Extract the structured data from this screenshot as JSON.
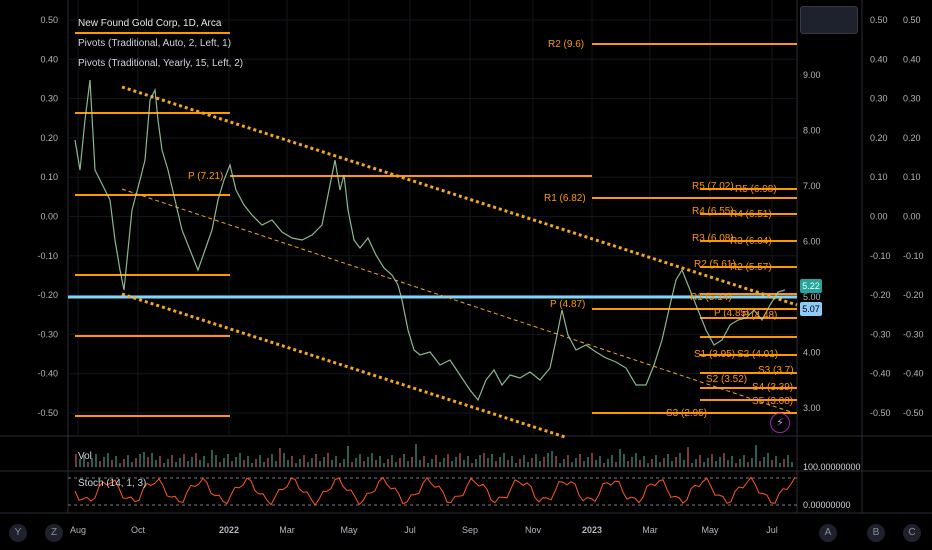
{
  "legend": {
    "title": "New Found Gold Corp, 1D, Arca",
    "ind1": "Pivots (Traditional, Auto, 2, Left, 1)",
    "ind2": "Pivots (Traditional, Yearly, 15, Left, 2)"
  },
  "sub": {
    "vol": "Vol",
    "stoch": "Stoch (14, 1, 3)"
  },
  "left_axis": [
    "0.50",
    "0.40",
    "0.30",
    "0.20",
    "0.10",
    "0.00",
    "-0.10",
    "-0.20",
    "-0.30",
    "-0.40",
    "-0.50"
  ],
  "right_axis": [
    "0.50",
    "0.40",
    "0.30",
    "0.20",
    "0.10",
    "0.00",
    "-0.10",
    "-0.20",
    "-0.30",
    "-0.40",
    "-0.50"
  ],
  "price_axis": [
    "9.00",
    "8.00",
    "7.00",
    "6.00",
    "5.00",
    "4.00",
    "3.00"
  ],
  "time_axis": [
    "Aug",
    "Oct",
    "2022",
    "Mar",
    "May",
    "Jul",
    "Sep",
    "Nov",
    "2023",
    "Mar",
    "May",
    "Jul"
  ],
  "badges": {
    "last": "5.22",
    "prev": "5.07"
  },
  "sub_axis": {
    "top": "100.00000000",
    "bottom": "0.00000000"
  },
  "pivots_left": {
    "p": "P (7.21)"
  },
  "pivots_mid": {
    "r2": "R2 (9.6)",
    "r1": "R1 (6.82)",
    "p": "P (4.87)",
    "s3": "S3 (2.95)"
  },
  "pivots_right": {
    "r5": "R5 (7.02)",
    "r5b": "R5 (6.98)",
    "r4": "R4 (6.55)",
    "r4b": "R4 (6.51)",
    "r3": "R3 (6.08)",
    "r3b": "R3 (6.04)",
    "r2": "R2 (5.61)",
    "r2b": "R2 (5.57)",
    "r1": "R1 (5.14)",
    "p": "P (4.85)",
    "p2": "P (4.48)",
    "s1": "S1 (3.95)",
    "s2": "S2 (4.01)",
    "s2b": "S2 (3.52)",
    "s3": "S3 (3.7)",
    "s4": "S4 (3.39)",
    "s5": "S5 (3.08)"
  },
  "bottom_buttons": [
    "Y",
    "Z",
    "A",
    "B",
    "C"
  ],
  "colors": {
    "pivot": "#ff9800",
    "trend": "#f5a623",
    "price": "#a5d6a7",
    "hline": "#81d4fa",
    "stoch": "#ff5722"
  }
}
